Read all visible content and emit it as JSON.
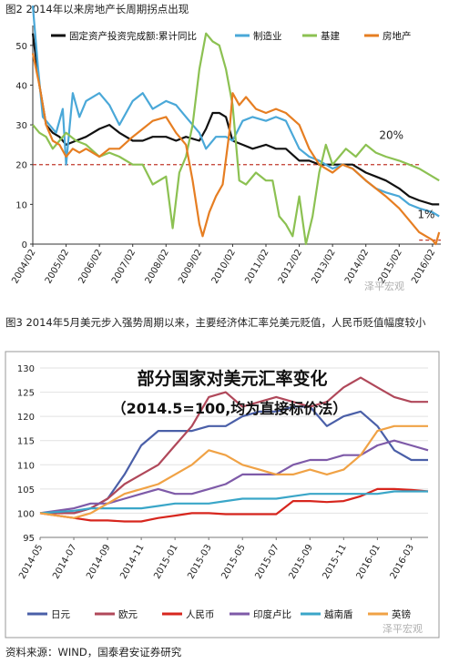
{
  "captions": {
    "fig2": "图2 2014年以来房地产长周期拐点出现",
    "fig3": "图3 2014年5月美元步入强势周期以来，主要经济体汇率兑美元贬值，人民币贬值幅度较小",
    "source": "资料来源：WIND，国泰君安证券研究"
  },
  "watermark": "泽平宏观",
  "chart_data": [
    {
      "type": "line",
      "title": "",
      "xlabel": "",
      "ylabel": "",
      "ylim": [
        0,
        55
      ],
      "yticks": [
        0,
        10,
        20,
        30,
        40,
        50
      ],
      "xlim": [
        2004.0,
        2016.25
      ],
      "xtick_labels": [
        "2004/02",
        "2005/02",
        "2006/02",
        "2007/02",
        "2008/02",
        "2009/02",
        "2010/02",
        "2011/02",
        "2012/02",
        "2013/02",
        "2014/02",
        "2015/02",
        "2016/02"
      ],
      "legend_position": "top",
      "reference_lines": [
        {
          "y": 20,
          "x_range": [
            2004.0,
            2015.6
          ],
          "style": "dashed",
          "color": "#c0392b"
        },
        {
          "y": 1,
          "x_range": [
            2015.6,
            2016.25
          ],
          "style": "dashed",
          "color": "#c0392b"
        }
      ],
      "annotations": [
        {
          "text": "20%",
          "x": 2014.4,
          "y": 26.5
        },
        {
          "text": "1%",
          "x": 2015.55,
          "y": 6.5
        }
      ],
      "series": [
        {
          "name": "固定资产投资完成额:累计同比",
          "color": "#111111",
          "x": [
            2004.0,
            2004.2,
            2004.4,
            2004.6,
            2004.8,
            2005.0,
            2005.3,
            2005.6,
            2006.0,
            2006.3,
            2006.6,
            2007.0,
            2007.3,
            2007.6,
            2008.0,
            2008.3,
            2008.6,
            2009.0,
            2009.2,
            2009.4,
            2009.6,
            2009.8,
            2010.0,
            2010.3,
            2010.6,
            2011.0,
            2011.3,
            2011.6,
            2012.0,
            2012.3,
            2012.6,
            2013.0,
            2013.3,
            2013.6,
            2014.0,
            2014.3,
            2014.6,
            2015.0,
            2015.3,
            2015.6,
            2016.0,
            2016.2
          ],
          "values": [
            53,
            40,
            30,
            28,
            27,
            25,
            26,
            27,
            29,
            30,
            28,
            26,
            26,
            27,
            27,
            26,
            27,
            26,
            29,
            33,
            33,
            32,
            26,
            25,
            24,
            25,
            24,
            24,
            21,
            21,
            20,
            20,
            20,
            20,
            18,
            17,
            16,
            14,
            12,
            11,
            10,
            10
          ]
        },
        {
          "name": "制造业",
          "color": "#4aa8d8",
          "x": [
            2004.0,
            2004.15,
            2004.3,
            2004.5,
            2004.7,
            2004.9,
            2005.0,
            2005.2,
            2005.4,
            2005.6,
            2006.0,
            2006.3,
            2006.6,
            2007.0,
            2007.3,
            2007.6,
            2008.0,
            2008.3,
            2008.6,
            2009.0,
            2009.2,
            2009.5,
            2009.8,
            2010.0,
            2010.3,
            2010.6,
            2011.0,
            2011.3,
            2011.6,
            2012.0,
            2012.3,
            2012.6,
            2013.0,
            2013.3,
            2013.6,
            2014.0,
            2014.3,
            2014.6,
            2015.0,
            2015.3,
            2015.6,
            2016.0,
            2016.2
          ],
          "values": [
            60,
            45,
            32,
            30,
            28,
            34,
            20,
            38,
            32,
            36,
            38,
            35,
            30,
            36,
            38,
            34,
            36,
            35,
            32,
            28,
            24,
            27,
            27,
            26,
            31,
            32,
            31,
            32,
            31,
            24,
            22,
            21,
            19,
            20,
            19,
            16,
            14,
            13,
            12,
            10,
            9,
            8,
            7
          ]
        },
        {
          "name": "基建",
          "color": "#8cc152",
          "x": [
            2004.0,
            2004.2,
            2004.4,
            2004.6,
            2004.8,
            2005.0,
            2005.3,
            2005.6,
            2006.0,
            2006.3,
            2006.6,
            2007.0,
            2007.3,
            2007.6,
            2008.0,
            2008.2,
            2008.4,
            2008.6,
            2008.8,
            2009.0,
            2009.2,
            2009.4,
            2009.6,
            2009.8,
            2010.0,
            2010.2,
            2010.4,
            2010.7,
            2011.0,
            2011.2,
            2011.4,
            2011.6,
            2011.8,
            2012.0,
            2012.2,
            2012.4,
            2012.6,
            2012.8,
            2013.0,
            2013.2,
            2013.4,
            2013.7,
            2014.0,
            2014.3,
            2014.6,
            2015.0,
            2015.3,
            2015.6,
            2016.0,
            2016.2
          ],
          "values": [
            30,
            28,
            27,
            24,
            26,
            28,
            26,
            25,
            22,
            23,
            22,
            20,
            20,
            15,
            17,
            4,
            18,
            22,
            30,
            44,
            53,
            51,
            50,
            44,
            35,
            16,
            15,
            18,
            16,
            16,
            7,
            5,
            2,
            12,
            0,
            7,
            18,
            25,
            20,
            22,
            24,
            22,
            25,
            23,
            22,
            21,
            20,
            19,
            17,
            16
          ]
        },
        {
          "name": "房地产",
          "color": "#e67e22",
          "x": [
            2004.0,
            2004.2,
            2004.4,
            2004.6,
            2004.8,
            2005.0,
            2005.2,
            2005.4,
            2005.6,
            2006.0,
            2006.3,
            2006.6,
            2007.0,
            2007.3,
            2007.6,
            2008.0,
            2008.3,
            2008.6,
            2008.8,
            2009.0,
            2009.1,
            2009.3,
            2009.5,
            2009.7,
            2009.9,
            2010.0,
            2010.2,
            2010.4,
            2010.7,
            2011.0,
            2011.3,
            2011.6,
            2012.0,
            2012.3,
            2012.6,
            2013.0,
            2013.3,
            2013.6,
            2014.0,
            2014.3,
            2014.6,
            2015.0,
            2015.3,
            2015.6,
            2016.0,
            2016.1,
            2016.2
          ],
          "values": [
            48,
            40,
            30,
            26,
            25,
            22,
            24,
            23,
            24,
            22,
            24,
            24,
            27,
            29,
            31,
            32,
            28,
            25,
            16,
            5,
            2,
            8,
            12,
            15,
            28,
            38,
            35,
            37,
            34,
            33,
            34,
            33,
            30,
            24,
            20,
            18,
            20,
            19,
            16,
            14,
            12,
            9,
            6,
            3,
            1,
            0,
            3
          ]
        }
      ]
    },
    {
      "type": "line",
      "title": "部分国家对美元汇率变化",
      "subtitle": "（2014.5=100,均为直接标价法）",
      "xlabel": "",
      "ylabel": "",
      "ylim": [
        95,
        130
      ],
      "yticks": [
        95,
        100,
        105,
        110,
        115,
        120,
        125,
        130
      ],
      "xlim": [
        2014.333,
        2016.25
      ],
      "xtick_labels": [
        "2014-05",
        "2014-07",
        "2014-09",
        "2014-11",
        "2015-01",
        "2015-03",
        "2015-05",
        "2015-07",
        "2015-09",
        "2015-11",
        "2016-01",
        "2016-03"
      ],
      "legend_position": "bottom",
      "series": [
        {
          "name": "日元",
          "color": "#4a5fa8",
          "x": [
            2014.333,
            2014.5,
            2014.583,
            2014.667,
            2014.75,
            2014.833,
            2014.917,
            2015.0,
            2015.083,
            2015.167,
            2015.25,
            2015.333,
            2015.417,
            2015.5,
            2015.583,
            2015.667,
            2015.75,
            2015.833,
            2015.917,
            2016.0,
            2016.083,
            2016.167,
            2016.25
          ],
          "values": [
            100,
            100,
            101,
            103,
            108,
            114,
            117,
            117,
            117,
            118,
            118,
            120,
            121,
            121,
            122,
            122,
            118,
            120,
            121,
            118,
            113,
            111,
            111
          ]
        },
        {
          "name": "欧元",
          "color": "#b0485a",
          "x": [
            2014.333,
            2014.5,
            2014.583,
            2014.667,
            2014.75,
            2014.833,
            2014.917,
            2015.0,
            2015.083,
            2015.167,
            2015.25,
            2015.333,
            2015.417,
            2015.5,
            2015.583,
            2015.667,
            2015.75,
            2015.833,
            2015.917,
            2016.0,
            2016.083,
            2016.167,
            2016.25
          ],
          "values": [
            100,
            100,
            101,
            103,
            106,
            108,
            110,
            114,
            118,
            124,
            125,
            122,
            123,
            124,
            123,
            122,
            123,
            126,
            128,
            126,
            124,
            123,
            123
          ]
        },
        {
          "name": "人民币",
          "color": "#d7261e",
          "x": [
            2014.333,
            2014.5,
            2014.583,
            2014.667,
            2014.75,
            2014.833,
            2014.917,
            2015.0,
            2015.083,
            2015.167,
            2015.25,
            2015.333,
            2015.417,
            2015.5,
            2015.583,
            2015.667,
            2015.75,
            2015.833,
            2015.917,
            2016.0,
            2016.083,
            2016.167,
            2016.25
          ],
          "values": [
            100,
            99,
            98.5,
            98.5,
            98.3,
            98.3,
            99,
            99.5,
            100,
            100,
            99.8,
            99.8,
            99.8,
            99.8,
            102.5,
            102.5,
            102.3,
            102.5,
            103.5,
            105,
            105,
            104.8,
            104.5
          ]
        },
        {
          "name": "印度卢比",
          "color": "#7e5aa8",
          "x": [
            2014.333,
            2014.5,
            2014.583,
            2014.667,
            2014.75,
            2014.833,
            2014.917,
            2015.0,
            2015.083,
            2015.167,
            2015.25,
            2015.333,
            2015.417,
            2015.5,
            2015.583,
            2015.667,
            2015.75,
            2015.833,
            2015.917,
            2016.0,
            2016.083,
            2016.167,
            2016.25
          ],
          "values": [
            100,
            101,
            102,
            102,
            103,
            104,
            105,
            104,
            104,
            105,
            106,
            108,
            108,
            108,
            110,
            111,
            111,
            112,
            112,
            114,
            115,
            114,
            113
          ]
        },
        {
          "name": "越南盾",
          "color": "#3aa6c8",
          "x": [
            2014.333,
            2014.5,
            2014.583,
            2014.667,
            2014.75,
            2014.833,
            2014.917,
            2015.0,
            2015.083,
            2015.167,
            2015.25,
            2015.333,
            2015.417,
            2015.5,
            2015.583,
            2015.667,
            2015.75,
            2015.833,
            2015.917,
            2016.0,
            2016.083,
            2016.167,
            2016.25
          ],
          "values": [
            100,
            100.5,
            101,
            101,
            101,
            101,
            101.5,
            102,
            102,
            102,
            102.5,
            103,
            103,
            103,
            103.5,
            104,
            104,
            104,
            104,
            104,
            104.5,
            104.5,
            104.5
          ]
        },
        {
          "name": "英镑",
          "color": "#f0a245",
          "x": [
            2014.333,
            2014.5,
            2014.583,
            2014.667,
            2014.75,
            2014.833,
            2014.917,
            2015.0,
            2015.083,
            2015.167,
            2015.25,
            2015.333,
            2015.417,
            2015.5,
            2015.583,
            2015.667,
            2015.75,
            2015.833,
            2015.917,
            2016.0,
            2016.083,
            2016.167,
            2016.25
          ],
          "values": [
            100,
            99,
            100,
            102,
            104,
            105,
            106,
            108,
            110,
            113,
            112,
            110,
            109,
            108,
            108,
            109,
            108,
            109,
            112,
            117,
            118,
            118,
            118
          ]
        }
      ]
    }
  ]
}
